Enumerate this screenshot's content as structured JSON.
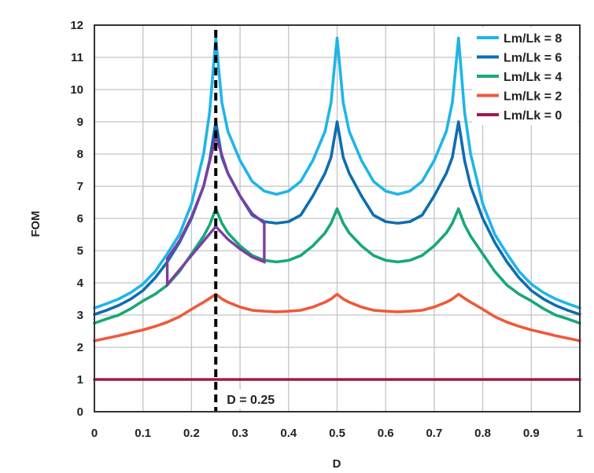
{
  "chart_data": {
    "type": "line",
    "title": "",
    "xlabel": "D",
    "ylabel": "FOM",
    "xlim": [
      0,
      1
    ],
    "ylim": [
      0,
      12
    ],
    "grid": true,
    "legend_position": "top-right",
    "x_ticks": [
      "0",
      "0.1",
      "0.2",
      "0.3",
      "0.4",
      "0.5",
      "0.6",
      "0.7",
      "0.8",
      "0.9",
      "1"
    ],
    "y_ticks": [
      "0",
      "1",
      "2",
      "3",
      "4",
      "5",
      "6",
      "7",
      "8",
      "9",
      "10",
      "11",
      "12"
    ],
    "x": [
      0,
      0.025,
      0.05,
      0.075,
      0.1,
      0.125,
      0.15,
      0.175,
      0.2,
      0.225,
      0.2375,
      0.25,
      0.2625,
      0.275,
      0.3,
      0.325,
      0.35,
      0.375,
      0.4,
      0.425,
      0.45,
      0.475,
      0.4875,
      0.5,
      0.5125,
      0.525,
      0.55,
      0.575,
      0.6,
      0.625,
      0.65,
      0.675,
      0.7,
      0.725,
      0.7375,
      0.75,
      0.7625,
      0.775,
      0.8,
      0.825,
      0.85,
      0.875,
      0.9,
      0.925,
      0.95,
      0.975,
      1
    ],
    "series": [
      {
        "name": "Lm/Lk = 8",
        "color": "#1fb5e8",
        "values": [
          3.22,
          3.35,
          3.5,
          3.7,
          3.96,
          4.35,
          4.9,
          5.5,
          6.45,
          8.0,
          9.3,
          11.6,
          9.6,
          8.7,
          7.8,
          7.15,
          6.85,
          6.75,
          6.85,
          7.15,
          7.8,
          8.7,
          9.6,
          11.6,
          9.6,
          8.7,
          7.8,
          7.15,
          6.85,
          6.75,
          6.85,
          7.15,
          7.8,
          8.7,
          9.6,
          11.6,
          9.3,
          8.0,
          6.45,
          5.5,
          4.9,
          4.35,
          3.96,
          3.7,
          3.5,
          3.35,
          3.22
        ]
      },
      {
        "name": "Lm/Lk = 6",
        "color": "#0f6db0",
        "values": [
          3.02,
          3.15,
          3.3,
          3.5,
          3.76,
          4.15,
          4.65,
          5.25,
          6.0,
          7.0,
          7.8,
          9.0,
          7.9,
          7.4,
          6.7,
          6.1,
          5.9,
          5.85,
          5.9,
          6.1,
          6.7,
          7.4,
          7.9,
          9.0,
          7.9,
          7.4,
          6.7,
          6.1,
          5.9,
          5.85,
          5.9,
          6.1,
          6.7,
          7.4,
          7.9,
          9.0,
          7.8,
          7.0,
          6.0,
          5.25,
          4.65,
          4.15,
          3.76,
          3.5,
          3.3,
          3.15,
          3.02
        ]
      },
      {
        "name": "Lm/Lk = 4",
        "color": "#17a878",
        "values": [
          2.75,
          2.88,
          3.0,
          3.2,
          3.44,
          3.65,
          3.93,
          4.35,
          4.9,
          5.45,
          5.8,
          6.3,
          5.85,
          5.55,
          5.15,
          4.85,
          4.7,
          4.65,
          4.7,
          4.85,
          5.15,
          5.55,
          5.85,
          6.3,
          5.85,
          5.55,
          5.15,
          4.85,
          4.7,
          4.65,
          4.7,
          4.85,
          5.15,
          5.55,
          5.85,
          6.3,
          5.8,
          5.45,
          4.9,
          4.35,
          3.93,
          3.65,
          3.44,
          3.2,
          3.0,
          2.88,
          2.75
        ]
      },
      {
        "name": "Lm/Lk = 2",
        "color": "#ee5a3a",
        "values": [
          2.2,
          2.28,
          2.36,
          2.45,
          2.54,
          2.65,
          2.78,
          2.95,
          3.18,
          3.4,
          3.52,
          3.65,
          3.5,
          3.4,
          3.25,
          3.15,
          3.12,
          3.1,
          3.12,
          3.15,
          3.25,
          3.4,
          3.5,
          3.65,
          3.5,
          3.4,
          3.25,
          3.15,
          3.12,
          3.1,
          3.12,
          3.15,
          3.25,
          3.4,
          3.5,
          3.65,
          3.52,
          3.4,
          3.18,
          2.95,
          2.78,
          2.65,
          2.54,
          2.45,
          2.36,
          2.28,
          2.2
        ]
      },
      {
        "name": "Lm/Lk = 0",
        "color": "#9b1b4d",
        "values": [
          1,
          1,
          1,
          1,
          1,
          1,
          1,
          1,
          1,
          1,
          1,
          1,
          1,
          1,
          1,
          1,
          1,
          1,
          1,
          1,
          1,
          1,
          1,
          1,
          1,
          1,
          1,
          1,
          1,
          1,
          1,
          1,
          1,
          1,
          1,
          1,
          1,
          1,
          1,
          1,
          1,
          1,
          1,
          1,
          1,
          1,
          1
        ]
      }
    ],
    "region": {
      "color": "#7b3fa0",
      "points": [
        [
          0.15,
          4.75
        ],
        [
          0.175,
          5.3
        ],
        [
          0.2,
          6.05
        ],
        [
          0.225,
          7.0
        ],
        [
          0.25,
          8.55
        ],
        [
          0.275,
          7.4
        ],
        [
          0.3,
          6.7
        ],
        [
          0.325,
          6.15
        ],
        [
          0.35,
          5.85
        ],
        [
          0.35,
          4.65
        ],
        [
          0.325,
          4.8
        ],
        [
          0.3,
          5.05
        ],
        [
          0.275,
          5.35
        ],
        [
          0.25,
          5.75
        ],
        [
          0.2,
          4.85
        ],
        [
          0.15,
          3.95
        ]
      ]
    },
    "marker_line": {
      "x": 0.25,
      "style": "dashed",
      "color": "#000000",
      "label": "D = 0.25"
    }
  }
}
